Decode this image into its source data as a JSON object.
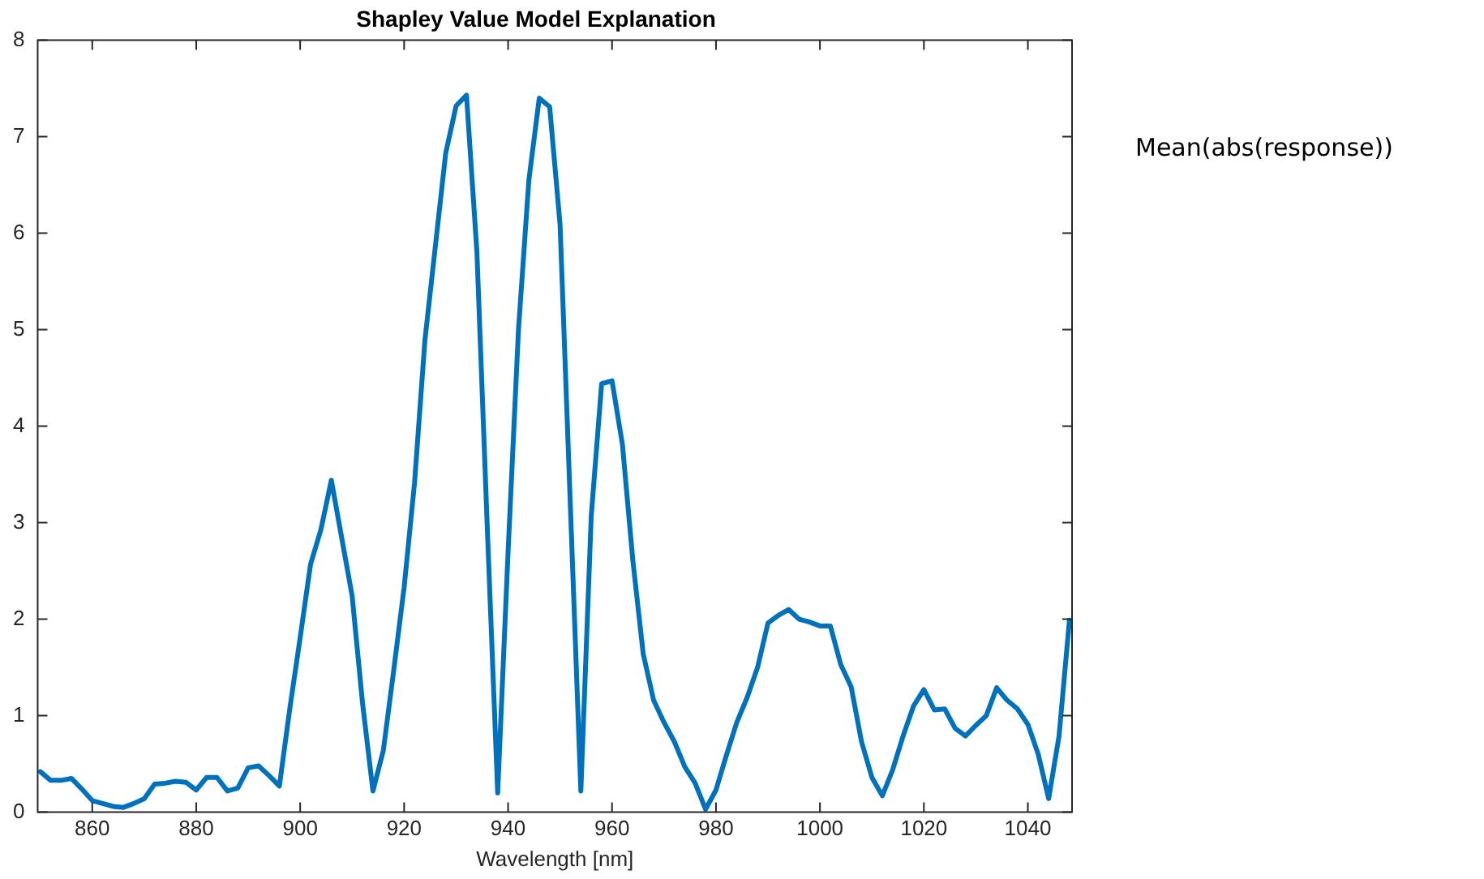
{
  "chart_data": {
    "type": "line",
    "title": "Shapley Value Model Explanation",
    "xlabel": "Wavelength [nm]",
    "annotations": [
      "Mean(abs(response))"
    ],
    "x": [
      850,
      852,
      854,
      856,
      858,
      860,
      862,
      864,
      866,
      868,
      870,
      872,
      874,
      876,
      878,
      880,
      882,
      884,
      886,
      888,
      890,
      892,
      894,
      896,
      898,
      900,
      902,
      904,
      906,
      908,
      910,
      912,
      914,
      916,
      918,
      920,
      922,
      924,
      926,
      928,
      930,
      932,
      934,
      936,
      938,
      940,
      942,
      944,
      946,
      948,
      950,
      952,
      954,
      956,
      958,
      960,
      962,
      964,
      966,
      968,
      970,
      972,
      974,
      976,
      978,
      980,
      982,
      984,
      986,
      988,
      990,
      992,
      994,
      996,
      998,
      1000,
      1002,
      1004,
      1006,
      1008,
      1010,
      1012,
      1014,
      1016,
      1018,
      1020,
      1022,
      1024,
      1026,
      1028,
      1030,
      1032,
      1034,
      1036,
      1038,
      1040,
      1042,
      1044,
      1046,
      1048
    ],
    "series": [
      {
        "color": "#0072bd",
        "values": [
          0.42,
          0.33,
          0.33,
          0.35,
          0.24,
          0.12,
          0.09,
          0.06,
          0.05,
          0.09,
          0.14,
          0.29,
          0.3,
          0.32,
          0.31,
          0.23,
          0.36,
          0.36,
          0.22,
          0.25,
          0.46,
          0.48,
          0.38,
          0.27,
          1.07,
          1.81,
          2.57,
          2.93,
          3.44,
          2.84,
          2.24,
          1.13,
          0.22,
          0.64,
          1.47,
          2.33,
          3.41,
          4.89,
          5.86,
          6.83,
          7.32,
          7.43,
          5.81,
          2.95,
          0.2,
          2.7,
          5.0,
          6.55,
          7.4,
          7.31,
          6.09,
          3.15,
          0.22,
          3.07,
          4.44,
          4.47,
          3.81,
          2.61,
          1.64,
          1.16,
          0.93,
          0.73,
          0.47,
          0.3,
          0.03,
          0.23,
          0.59,
          0.93,
          1.19,
          1.5,
          1.96,
          2.04,
          2.1,
          2.0,
          1.97,
          1.93,
          1.93,
          1.53,
          1.3,
          0.73,
          0.36,
          0.17,
          0.44,
          0.79,
          1.1,
          1.27,
          1.06,
          1.07,
          0.87,
          0.79,
          0.9,
          1.0,
          1.29,
          1.16,
          1.07,
          0.91,
          0.6,
          0.14,
          0.79,
          1.99
        ]
      }
    ],
    "xlim": [
      849.5,
      1048.5
    ],
    "xticks": [
      860,
      880,
      900,
      920,
      940,
      960,
      980,
      1000,
      1020,
      1040
    ],
    "ylim": [
      0,
      8
    ],
    "yticks": [
      0,
      1,
      2,
      3,
      4,
      5,
      6,
      7,
      8
    ],
    "marker": "none",
    "line_style": "solid",
    "legend": false,
    "grid": false
  }
}
